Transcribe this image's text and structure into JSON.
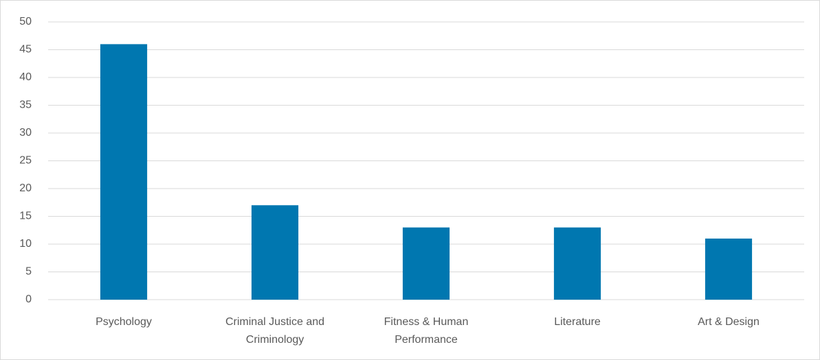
{
  "chart_data": {
    "type": "bar",
    "categories": [
      "Psychology",
      "Criminal Justice and Criminology",
      "Fitness & Human Performance",
      "Literature",
      "Art & Design"
    ],
    "values": [
      46,
      17,
      13,
      13,
      11
    ],
    "color": "#0077b0",
    "ylim": [
      0,
      50
    ],
    "yticks": [
      0,
      5,
      10,
      15,
      20,
      25,
      30,
      35,
      40,
      45,
      50
    ],
    "grid": true
  }
}
